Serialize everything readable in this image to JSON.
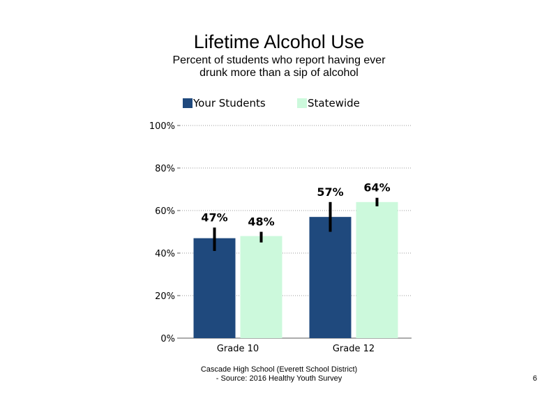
{
  "chart_data": {
    "type": "bar",
    "title": "Lifetime Alcohol Use",
    "subtitle": "Percent of students who report having ever drunk more than a sip of alcohol",
    "categories": [
      "Grade 10",
      "Grade 12"
    ],
    "series": [
      {
        "name": "Your Students",
        "values": [
          47,
          57
        ],
        "labels": [
          "47%",
          "57%"
        ],
        "error_low": [
          41,
          50
        ],
        "error_high": [
          52,
          64
        ],
        "color": "#1f497d"
      },
      {
        "name": "Statewide",
        "values": [
          48,
          64
        ],
        "labels": [
          "48%",
          "64%"
        ],
        "error_low": [
          45,
          62
        ],
        "error_high": [
          50,
          66
        ],
        "color": "#ccf9dc"
      }
    ],
    "ylim": [
      0,
      100
    ],
    "yticks": [
      0,
      20,
      40,
      60,
      80,
      100
    ],
    "ytick_labels": [
      "0%",
      "20%",
      "40%",
      "60%",
      "80%",
      "100%"
    ],
    "xlabel": "",
    "ylabel": "",
    "grid": "dotted horizontal",
    "legend_position": "top"
  },
  "footer": {
    "source": "Cascade High School (Everett School District)\n- Source: 2016 Healthy Youth Survey",
    "page_number": "6"
  }
}
